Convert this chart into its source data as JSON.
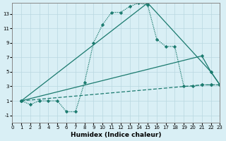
{
  "xlabel": "Humidex (Indice chaleur)",
  "background_color": "#d9eff5",
  "grid_color": "#b8d8e0",
  "line_color": "#1a7a6e",
  "xlim": [
    0,
    23
  ],
  "ylim": [
    -2,
    14.5
  ],
  "xticks": [
    0,
    1,
    2,
    3,
    4,
    5,
    6,
    7,
    8,
    9,
    10,
    11,
    12,
    13,
    14,
    15,
    16,
    17,
    18,
    19,
    20,
    21,
    22,
    23
  ],
  "yticks": [
    -1,
    1,
    3,
    5,
    7,
    9,
    11,
    13
  ],
  "series": [
    {
      "x": [
        1,
        2,
        3,
        4,
        5,
        6,
        7,
        8,
        9,
        10,
        11,
        12,
        13,
        14,
        15,
        16,
        17,
        18,
        19,
        20,
        21,
        22,
        23
      ],
      "y": [
        1,
        0.5,
        1,
        1,
        1,
        -0.5,
        -0.5,
        3.5,
        9,
        11.5,
        13.2,
        13.2,
        14,
        14.5,
        14.2,
        9.5,
        8.5,
        8.5,
        3.0,
        3.0,
        3.2,
        3.2,
        3.2
      ],
      "linestyle": "dotted",
      "marker": true
    },
    {
      "x": [
        1,
        21,
        22,
        23
      ],
      "y": [
        1,
        7.2,
        5.0,
        3.2
      ],
      "linestyle": "solid",
      "marker": true
    },
    {
      "x": [
        1,
        21,
        22,
        23
      ],
      "y": [
        1,
        3.2,
        3.2,
        3.2
      ],
      "linestyle": "dashed",
      "marker": true
    },
    {
      "x": [
        1,
        15,
        22,
        23
      ],
      "y": [
        1,
        14.5,
        5.0,
        3.2
      ],
      "linestyle": "solid",
      "marker": true
    }
  ]
}
